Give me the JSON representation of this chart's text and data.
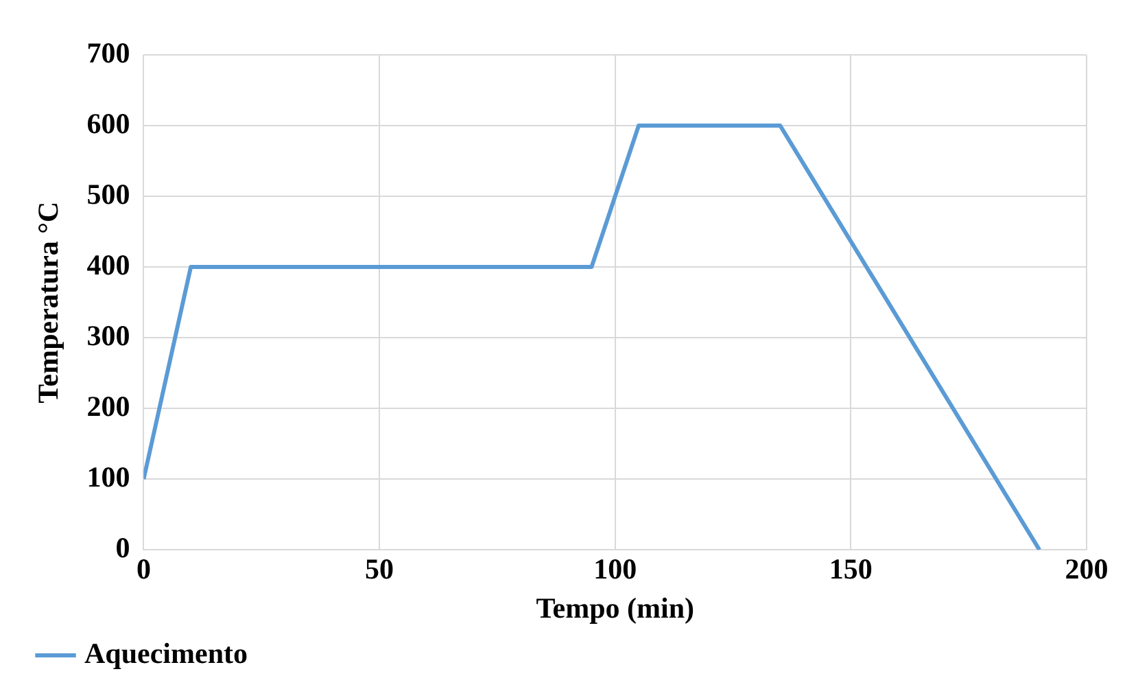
{
  "chart_data": {
    "type": "line",
    "xlabel": "Tempo (min)",
    "ylabel": "Temperatura °C",
    "series": [
      {
        "name": "Aquecimento",
        "color": "#5b9bd5",
        "x": [
          0,
          10,
          95,
          105,
          135,
          190
        ],
        "values": [
          100,
          400,
          400,
          600,
          600,
          0
        ]
      }
    ],
    "xlim": [
      0,
      200
    ],
    "xticks": [
      0,
      50,
      100,
      150,
      200
    ],
    "ylim": [
      0,
      700
    ],
    "yticks": [
      0,
      100,
      200,
      300,
      400,
      500,
      600,
      700
    ],
    "grid": true,
    "legend": "bottom left",
    "marker": "none",
    "line_style": "solid"
  }
}
